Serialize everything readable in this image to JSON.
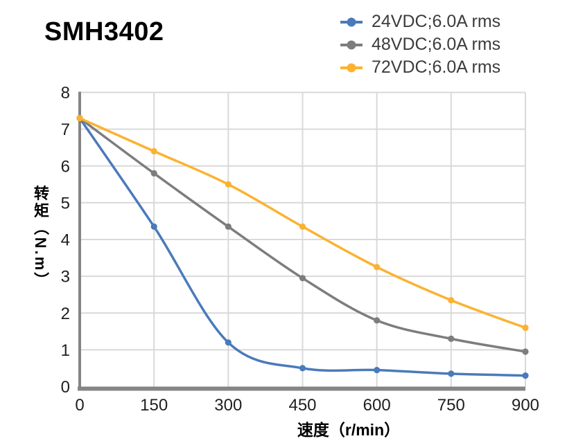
{
  "title": "SMH3402",
  "chart_data": {
    "type": "line",
    "x": [
      0,
      150,
      300,
      450,
      600,
      750,
      900
    ],
    "series": [
      {
        "name": "24VDC;6.0A rms",
        "color": "#4A7ABA",
        "values": [
          7.3,
          4.35,
          1.2,
          0.5,
          0.45,
          0.35,
          0.3
        ]
      },
      {
        "name": "48VDC;6.0A rms",
        "color": "#7D7D7D",
        "values": [
          7.3,
          5.8,
          4.35,
          2.95,
          1.8,
          1.3,
          0.95
        ]
      },
      {
        "name": "72VDC;6.0A rms",
        "color": "#FBB231",
        "values": [
          7.3,
          6.4,
          5.5,
          4.35,
          3.25,
          2.35,
          1.6
        ]
      }
    ],
    "title": "SMH3402",
    "xlabel": "速度（r/min）",
    "ylabel": "转矩（N.m）",
    "xlim": [
      0,
      900
    ],
    "ylim": [
      0,
      8
    ],
    "x_ticks": [
      0,
      150,
      300,
      450,
      600,
      750,
      900
    ],
    "y_ticks": [
      0,
      1,
      2,
      3,
      4,
      5,
      6,
      7,
      8
    ],
    "grid": true,
    "smooth": true,
    "marker": "circle",
    "legend_position": "top-right"
  },
  "colors": {
    "grid": "#D9D9D9",
    "axis": "#858585",
    "tick_text": "#1f1f1f",
    "background": "#FFFFFF"
  }
}
